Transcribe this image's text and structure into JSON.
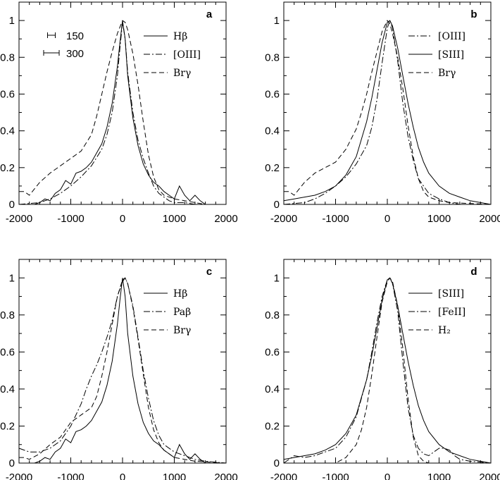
{
  "chart_data": [
    {
      "panel": "a",
      "type": "line",
      "xlim": [
        -2000,
        2000
      ],
      "ylim": [
        0,
        1.1
      ],
      "x_ticks": [
        "-2000",
        "-1000",
        "0",
        "1000",
        "2000"
      ],
      "y_ticks": [
        "0",
        "0.2",
        "0.4",
        "0.6",
        "0.8",
        "1"
      ],
      "scale_bars": [
        {
          "label": "150",
          "width": 150
        },
        {
          "label": "300",
          "width": 300
        }
      ],
      "series": [
        {
          "name": "Hβ",
          "style": "solid",
          "x": [
            -2000,
            -1700,
            -1600,
            -1500,
            -1400,
            -1300,
            -1200,
            -1100,
            -1000,
            -900,
            -800,
            -700,
            -600,
            -500,
            -400,
            -300,
            -200,
            -100,
            -50,
            0,
            50,
            100,
            200,
            300,
            400,
            500,
            600,
            700,
            800,
            900,
            1000,
            1100,
            1200,
            1300,
            1400,
            1500,
            1600,
            1800,
            2000
          ],
          "y": [
            0,
            0,
            0.01,
            0.03,
            0.02,
            0.06,
            0.08,
            0.13,
            0.11,
            0.17,
            0.18,
            0.2,
            0.23,
            0.28,
            0.33,
            0.42,
            0.55,
            0.75,
            0.88,
            1.0,
            0.9,
            0.7,
            0.47,
            0.32,
            0.22,
            0.16,
            0.12,
            0.1,
            0.07,
            0.05,
            0.03,
            0.1,
            0.05,
            0.02,
            0.05,
            0.02,
            0,
            0,
            0
          ]
        },
        {
          "name": "[OIII]",
          "style": "dashdot",
          "x": [
            -2000,
            -1600,
            -1400,
            -1200,
            -1000,
            -800,
            -600,
            -400,
            -300,
            -200,
            -100,
            -50,
            0,
            50,
            100,
            200,
            300,
            400,
            500,
            600,
            700,
            800,
            900,
            1000,
            1200,
            1400,
            1600,
            2000
          ],
          "y": [
            0,
            0.01,
            0.03,
            0.06,
            0.1,
            0.15,
            0.21,
            0.3,
            0.38,
            0.5,
            0.7,
            0.85,
            0.99,
            0.9,
            0.72,
            0.5,
            0.35,
            0.25,
            0.17,
            0.1,
            0.06,
            0.04,
            0.02,
            0.01,
            0.01,
            0,
            0,
            0
          ]
        },
        {
          "name": "Brγ",
          "style": "dashed",
          "x": [
            -2000,
            -1900,
            -1800,
            -1600,
            -1400,
            -1200,
            -1000,
            -800,
            -600,
            -500,
            -400,
            -300,
            -200,
            -100,
            0,
            50,
            100,
            200,
            300,
            400,
            500,
            600,
            700,
            800,
            1000,
            1200,
            1400,
            1600,
            2000
          ],
          "y": [
            0.07,
            0.07,
            0.05,
            0.12,
            0.17,
            0.21,
            0.25,
            0.29,
            0.38,
            0.48,
            0.6,
            0.72,
            0.83,
            0.93,
            1.0,
            0.99,
            0.95,
            0.82,
            0.65,
            0.45,
            0.27,
            0.15,
            0.08,
            0.05,
            0.03,
            0.02,
            0.01,
            0,
            0
          ]
        }
      ]
    },
    {
      "panel": "b",
      "type": "line",
      "xlim": [
        -2000,
        2000
      ],
      "ylim": [
        0,
        1.1
      ],
      "x_ticks": [
        "-2000",
        "-1000",
        "0",
        "1000",
        "2000"
      ],
      "y_ticks": [
        "0",
        "0.2",
        "0.4",
        "0.6",
        "0.8",
        "1"
      ],
      "series": [
        {
          "name": "[OIII]",
          "style": "dashdot",
          "x": [
            -2000,
            -1600,
            -1400,
            -1200,
            -1000,
            -800,
            -600,
            -400,
            -300,
            -200,
            -100,
            0,
            50,
            100,
            200,
            300,
            400,
            500,
            600,
            800,
            1000,
            1200,
            1400,
            1600,
            2000
          ],
          "y": [
            0,
            0.01,
            0.03,
            0.06,
            0.1,
            0.15,
            0.22,
            0.32,
            0.42,
            0.57,
            0.77,
            0.96,
            1.0,
            0.96,
            0.78,
            0.55,
            0.37,
            0.24,
            0.14,
            0.06,
            0.03,
            0.01,
            0,
            0,
            0
          ]
        },
        {
          "name": "[SIII]",
          "style": "solid",
          "x": [
            -2000,
            -1800,
            -1600,
            -1400,
            -1200,
            -1000,
            -800,
            -600,
            -400,
            -300,
            -200,
            -100,
            0,
            50,
            100,
            200,
            300,
            400,
            500,
            600,
            700,
            800,
            1000,
            1200,
            1400,
            1600,
            1800,
            2000
          ],
          "y": [
            0.02,
            0.03,
            0.04,
            0.05,
            0.07,
            0.1,
            0.16,
            0.26,
            0.45,
            0.58,
            0.73,
            0.88,
            0.99,
            1.0,
            0.97,
            0.85,
            0.7,
            0.55,
            0.42,
            0.31,
            0.23,
            0.17,
            0.1,
            0.06,
            0.04,
            0.02,
            0.01,
            0
          ]
        },
        {
          "name": "Brγ",
          "style": "dashed",
          "x": [
            -2000,
            -1900,
            -1800,
            -1600,
            -1400,
            -1200,
            -1000,
            -800,
            -600,
            -500,
            -400,
            -300,
            -200,
            -100,
            0,
            50,
            100,
            200,
            300,
            400,
            500,
            600,
            700,
            800,
            1000,
            1200,
            2000
          ],
          "y": [
            0.07,
            0.07,
            0.05,
            0.12,
            0.17,
            0.2,
            0.23,
            0.3,
            0.41,
            0.5,
            0.6,
            0.72,
            0.83,
            0.94,
            1.0,
            0.98,
            0.93,
            0.8,
            0.63,
            0.43,
            0.26,
            0.14,
            0.07,
            0.04,
            0.02,
            0.01,
            0
          ]
        }
      ]
    },
    {
      "panel": "c",
      "type": "line",
      "xlim": [
        -2000,
        2000
      ],
      "ylim": [
        0,
        1.1
      ],
      "x_ticks": [
        "-2000",
        "-1000",
        "0",
        "1000",
        "2000"
      ],
      "y_ticks": [
        "0",
        "0.2",
        "0.4",
        "0.6",
        "0.8",
        "1"
      ],
      "series": [
        {
          "name": "Hβ",
          "style": "solid",
          "x": [
            -2000,
            -1700,
            -1600,
            -1500,
            -1400,
            -1300,
            -1200,
            -1100,
            -1000,
            -900,
            -800,
            -700,
            -600,
            -500,
            -400,
            -300,
            -200,
            -100,
            -50,
            0,
            50,
            100,
            200,
            300,
            400,
            500,
            600,
            700,
            800,
            900,
            1000,
            1100,
            1200,
            1300,
            1400,
            1500,
            1600,
            1800,
            2000
          ],
          "y": [
            0,
            0,
            0.01,
            0.03,
            0.02,
            0.06,
            0.08,
            0.13,
            0.11,
            0.17,
            0.18,
            0.2,
            0.23,
            0.28,
            0.33,
            0.42,
            0.55,
            0.75,
            0.88,
            1.0,
            0.9,
            0.7,
            0.47,
            0.32,
            0.22,
            0.16,
            0.12,
            0.1,
            0.07,
            0.05,
            0.03,
            0.1,
            0.05,
            0.02,
            0.05,
            0.02,
            0,
            0,
            0
          ]
        },
        {
          "name": "Paβ",
          "style": "dashdot",
          "x": [
            -2000,
            -1800,
            -1600,
            -1400,
            -1200,
            -1000,
            -800,
            -700,
            -600,
            -500,
            -400,
            -300,
            -200,
            -100,
            0,
            50,
            100,
            200,
            300,
            400,
            500,
            600,
            700,
            800,
            1000,
            1200,
            1400,
            1600,
            2000
          ],
          "y": [
            0.08,
            0.06,
            0.06,
            0.08,
            0.12,
            0.2,
            0.32,
            0.4,
            0.47,
            0.53,
            0.6,
            0.68,
            0.77,
            0.9,
            0.98,
            1.0,
            0.97,
            0.85,
            0.68,
            0.5,
            0.35,
            0.23,
            0.15,
            0.1,
            0.06,
            0.04,
            0.02,
            0.01,
            0
          ]
        },
        {
          "name": "Brγ",
          "style": "dashed",
          "x": [
            -2000,
            -1900,
            -1800,
            -1600,
            -1400,
            -1200,
            -1000,
            -800,
            -600,
            -500,
            -400,
            -300,
            -200,
            -100,
            0,
            50,
            100,
            200,
            300,
            400,
            500,
            600,
            700,
            800,
            1000,
            1200,
            1400,
            2000
          ],
          "y": [
            0.03,
            0.03,
            0.02,
            0.05,
            0.1,
            0.14,
            0.22,
            0.26,
            0.3,
            0.36,
            0.47,
            0.6,
            0.75,
            0.9,
            0.99,
            1.0,
            0.97,
            0.84,
            0.67,
            0.48,
            0.3,
            0.18,
            0.11,
            0.07,
            0.03,
            0.02,
            0.01,
            0
          ]
        }
      ]
    },
    {
      "panel": "d",
      "type": "line",
      "xlim": [
        -2000,
        2000
      ],
      "ylim": [
        0,
        1.1
      ],
      "x_ticks": [
        "-2000",
        "-1000",
        "0",
        "1000",
        "2000"
      ],
      "y_ticks": [
        "0",
        "0.2",
        "0.4",
        "0.6",
        "0.8",
        "1"
      ],
      "series": [
        {
          "name": "[SIII]",
          "style": "solid",
          "x": [
            -2000,
            -1800,
            -1600,
            -1400,
            -1200,
            -1000,
            -800,
            -600,
            -400,
            -300,
            -200,
            -100,
            0,
            50,
            100,
            200,
            300,
            400,
            500,
            600,
            700,
            800,
            1000,
            1200,
            1400,
            1600,
            1800,
            2000
          ],
          "y": [
            0.02,
            0.03,
            0.04,
            0.05,
            0.07,
            0.1,
            0.16,
            0.26,
            0.45,
            0.58,
            0.73,
            0.88,
            0.99,
            1.0,
            0.97,
            0.85,
            0.7,
            0.55,
            0.42,
            0.31,
            0.23,
            0.17,
            0.1,
            0.06,
            0.04,
            0.02,
            0.01,
            0
          ]
        },
        {
          "name": "[FeII]",
          "style": "dashdot",
          "x": [
            -2000,
            -1800,
            -1600,
            -1400,
            -1200,
            -1000,
            -800,
            -600,
            -400,
            -300,
            -200,
            -100,
            0,
            50,
            100,
            200,
            300,
            400,
            500,
            600,
            700,
            800,
            900,
            1000,
            1100,
            1200,
            1300,
            1400,
            1600,
            2000
          ],
          "y": [
            0,
            0.04,
            0.03,
            0.04,
            0.06,
            0.08,
            0.14,
            0.25,
            0.45,
            0.6,
            0.76,
            0.9,
            0.99,
            1.0,
            0.97,
            0.82,
            0.55,
            0.3,
            0.15,
            0.08,
            0.05,
            0.04,
            0.06,
            0.08,
            0.08,
            0.07,
            0.04,
            0.02,
            0.01,
            0
          ]
        },
        {
          "name": "H₂",
          "style": "dashed",
          "x": [
            -2000,
            -1000,
            -800,
            -600,
            -500,
            -400,
            -300,
            -200,
            -100,
            0,
            50,
            100,
            200,
            300,
            400,
            500,
            600,
            700,
            800,
            1000,
            2000
          ],
          "y": [
            0,
            0,
            0.03,
            0.1,
            0.18,
            0.3,
            0.48,
            0.68,
            0.87,
            0.98,
            1.0,
            0.98,
            0.85,
            0.62,
            0.35,
            0.14,
            0.04,
            0.01,
            0,
            0,
            0
          ]
        }
      ]
    }
  ]
}
